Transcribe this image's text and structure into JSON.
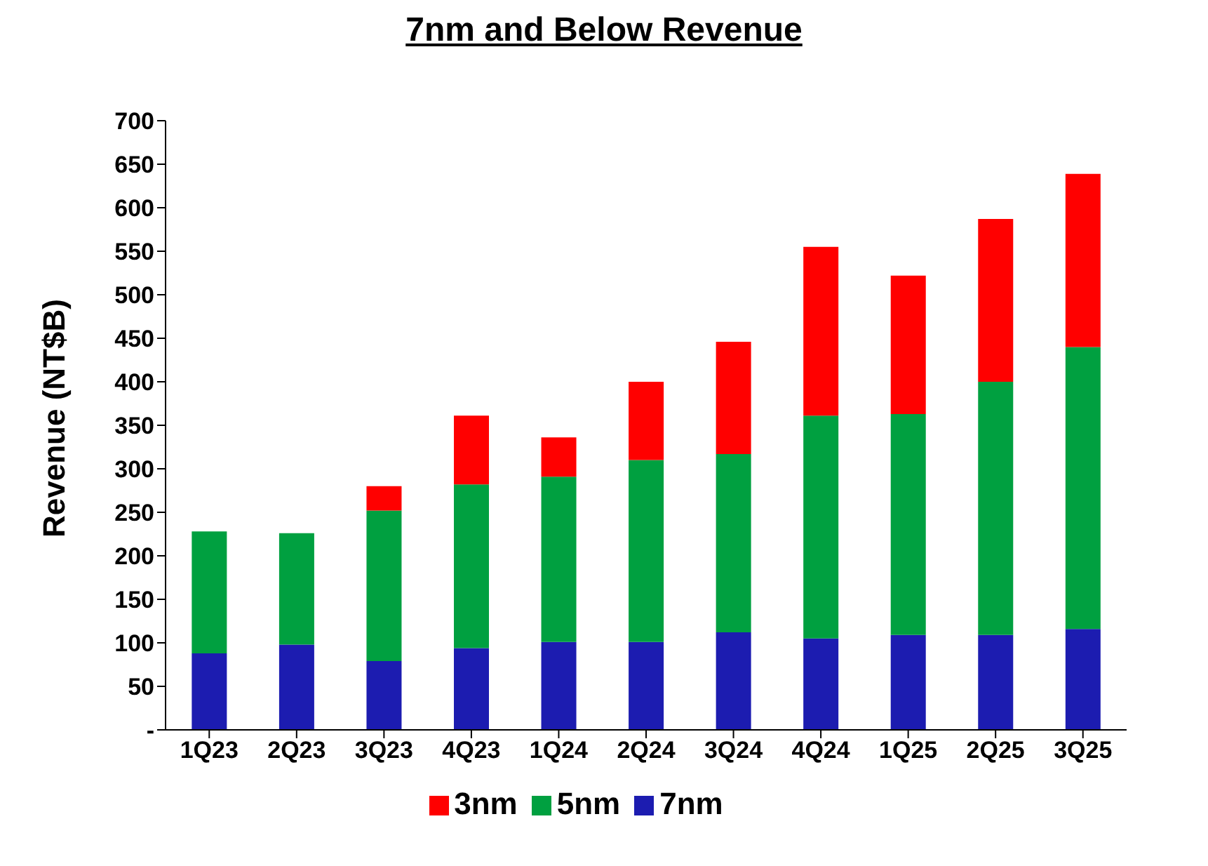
{
  "chart_data": {
    "type": "bar",
    "title": "7nm and Below Revenue",
    "ylabel": "Revenue (NT$B)",
    "categories": [
      "1Q23",
      "2Q23",
      "3Q23",
      "4Q23",
      "1Q24",
      "2Q24",
      "3Q24",
      "4Q24",
      "1Q25",
      "2Q25",
      "3Q25"
    ],
    "series": [
      {
        "name": "7nm",
        "color": "#1c1cb0",
        "values": [
          88,
          98,
          79,
          94,
          101,
          101,
          112,
          105,
          109,
          109,
          116
        ]
      },
      {
        "name": "5nm",
        "color": "#00a040",
        "values": [
          140,
          128,
          173,
          188,
          190,
          209,
          205,
          256,
          254,
          291,
          324
        ]
      },
      {
        "name": "3nm",
        "color": "#ff0000",
        "values": [
          0,
          0,
          28,
          79,
          45,
          90,
          129,
          194,
          159,
          187,
          199
        ]
      }
    ],
    "stacked": true,
    "ylim": [
      0,
      700
    ],
    "yticks": [
      {
        "value": 0,
        "label": "-"
      },
      50,
      100,
      150,
      200,
      250,
      300,
      350,
      400,
      450,
      500,
      550,
      600,
      650,
      700
    ],
    "grid": false,
    "legend": "bottom"
  }
}
